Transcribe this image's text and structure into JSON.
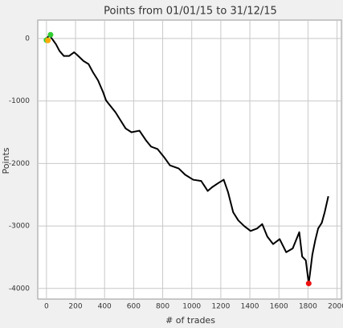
{
  "chart_data": {
    "type": "line",
    "title": "Points from 01/01/15 to 31/12/15",
    "xlabel": "# of trades",
    "ylabel": "Points",
    "xlim": [
      -60,
      2030
    ],
    "ylim": [
      -4170,
      295
    ],
    "xticks": [
      0,
      200,
      400,
      600,
      800,
      1000,
      1200,
      1400,
      1600,
      1800,
      2000
    ],
    "yticks": [
      0,
      -1000,
      -2000,
      -3000,
      -4000
    ],
    "grid": true,
    "series": [
      {
        "color": "#000000",
        "x": [
          0,
          20,
          45,
          65,
          90,
          120,
          155,
          190,
          210,
          255,
          290,
          320,
          355,
          390,
          410,
          430,
          475,
          510,
          545,
          585,
          640,
          685,
          720,
          765,
          810,
          850,
          910,
          955,
          1010,
          1065,
          1110,
          1140,
          1185,
          1220,
          1250,
          1285,
          1320,
          1360,
          1405,
          1450,
          1485,
          1520,
          1560,
          1605,
          1650,
          1695,
          1740,
          1760,
          1785,
          1805,
          1815,
          1830,
          1850,
          1870,
          1895,
          1915,
          1940
        ],
        "values": [
          0,
          50,
          -25,
          -90,
          -200,
          -280,
          -280,
          -220,
          -260,
          -360,
          -410,
          -540,
          -670,
          -860,
          -990,
          -1050,
          -1180,
          -1310,
          -1440,
          -1500,
          -1475,
          -1630,
          -1730,
          -1770,
          -1900,
          -2030,
          -2080,
          -2180,
          -2260,
          -2280,
          -2440,
          -2380,
          -2310,
          -2260,
          -2460,
          -2780,
          -2910,
          -3000,
          -3080,
          -3040,
          -2970,
          -3170,
          -3290,
          -3210,
          -3420,
          -3360,
          -3100,
          -3490,
          -3550,
          -3920,
          -3740,
          -3460,
          -3230,
          -3040,
          -2950,
          -2780,
          -2525
        ]
      }
    ],
    "markers": [
      {
        "x": 0,
        "y": -25,
        "color": "#33cc33"
      },
      {
        "x": 28,
        "y": 60,
        "color": "#33cc33"
      },
      {
        "x": 10,
        "y": -30,
        "color": "#ffaa00"
      },
      {
        "x": 1805,
        "y": -3920,
        "color": "#ee1111"
      }
    ]
  }
}
